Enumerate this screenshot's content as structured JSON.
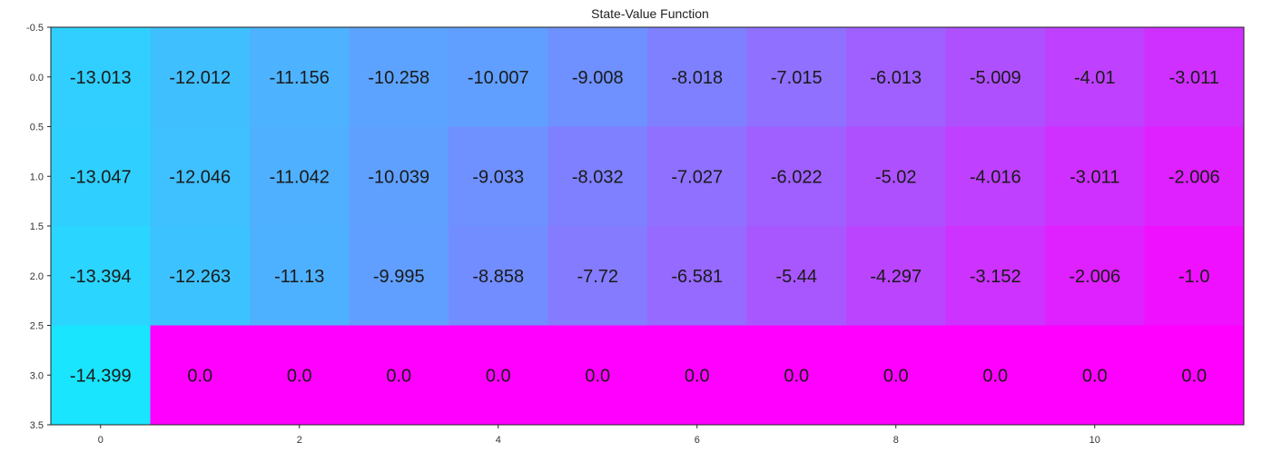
{
  "chart_data": {
    "type": "heatmap",
    "title": "State-Value Function",
    "xlabel": "",
    "ylabel": "",
    "rows": 4,
    "cols": 12,
    "values": [
      [
        -13.013,
        -12.012,
        -11.156,
        -10.258,
        -10.007,
        -9.008,
        -8.018,
        -7.015,
        -6.013,
        -5.009,
        -4.01,
        -3.011
      ],
      [
        -13.047,
        -12.046,
        -11.042,
        -10.039,
        -9.033,
        -8.032,
        -7.027,
        -6.022,
        -5.02,
        -4.016,
        -3.011,
        -2.006
      ],
      [
        -13.394,
        -12.263,
        -11.13,
        -9.995,
        -8.858,
        -7.72,
        -6.581,
        -5.44,
        -4.297,
        -3.152,
        -2.006,
        -1.0
      ],
      [
        -14.399,
        0.0,
        0.0,
        0.0,
        0.0,
        0.0,
        0.0,
        0.0,
        0.0,
        0.0,
        0.0,
        0.0
      ]
    ],
    "labels": [
      [
        "-13.013",
        "-12.012",
        "-11.156",
        "-10.258",
        "-10.007",
        "-9.008",
        "-8.018",
        "-7.015",
        "-6.013",
        "-5.009",
        "-4.01",
        "-3.011"
      ],
      [
        "-13.047",
        "-12.046",
        "-11.042",
        "-10.039",
        "-9.033",
        "-8.032",
        "-7.027",
        "-6.022",
        "-5.02",
        "-4.016",
        "-3.011",
        "-2.006"
      ],
      [
        "-13.394",
        "-12.263",
        "-11.13",
        "-9.995",
        "-8.858",
        "-7.72",
        "-6.581",
        "-5.44",
        "-4.297",
        "-3.152",
        "-2.006",
        "-1.0"
      ],
      [
        "-14.399",
        "0.0",
        "0.0",
        "0.0",
        "0.0",
        "0.0",
        "0.0",
        "0.0",
        "0.0",
        "0.0",
        "0.0",
        "0.0"
      ]
    ],
    "colormap": "cool",
    "colormap_start": "#00ffff",
    "colormap_end": "#ff00ff",
    "vrange": [
      -16,
      0
    ],
    "xlim": [
      -0.5,
      11.5
    ],
    "ylim": [
      -0.5,
      3.5
    ],
    "xticks": [
      "0",
      "2",
      "4",
      "6",
      "8",
      "10"
    ],
    "xtick_values": [
      0,
      2,
      4,
      6,
      8,
      10
    ],
    "yticks": [
      "-0.5",
      "0.0",
      "0.5",
      "1.0",
      "1.5",
      "2.0",
      "2.5",
      "3.0",
      "3.5"
    ],
    "ytick_values": [
      -0.5,
      0.0,
      0.5,
      1.0,
      1.5,
      2.0,
      2.5,
      3.0,
      3.5
    ],
    "grid": false
  }
}
